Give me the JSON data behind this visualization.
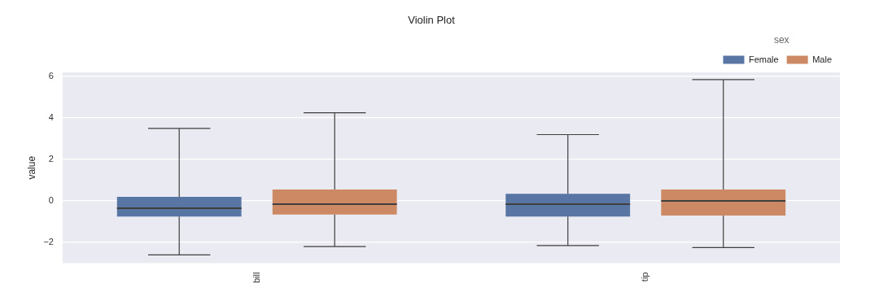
{
  "chart_data": {
    "type": "box",
    "title": "Violin Plot",
    "ylabel": "value",
    "legend_title": "sex",
    "legend": "top right",
    "grid": "y",
    "categories": [
      "bill",
      "tip"
    ],
    "ylim": [
      -3,
      6.2
    ],
    "yticks": [
      {
        "value": -2,
        "label": "−2"
      },
      0,
      2,
      4,
      6
    ],
    "series": [
      {
        "name": "Female",
        "color": "#5875a4",
        "boxes": [
          {
            "low": -2.6,
            "q1": -0.75,
            "median": -0.35,
            "q3": 0.2,
            "high": 3.5
          },
          {
            "low": -2.15,
            "q1": -0.75,
            "median": -0.15,
            "q3": 0.35,
            "high": 3.2
          }
        ]
      },
      {
        "name": "Male",
        "color": "#cc8963",
        "boxes": [
          {
            "low": -2.2,
            "q1": -0.65,
            "median": -0.15,
            "q3": 0.55,
            "high": 4.25
          },
          {
            "low": -2.25,
            "q1": -0.7,
            "median": 0,
            "q3": 0.55,
            "high": 5.85
          }
        ]
      }
    ]
  }
}
